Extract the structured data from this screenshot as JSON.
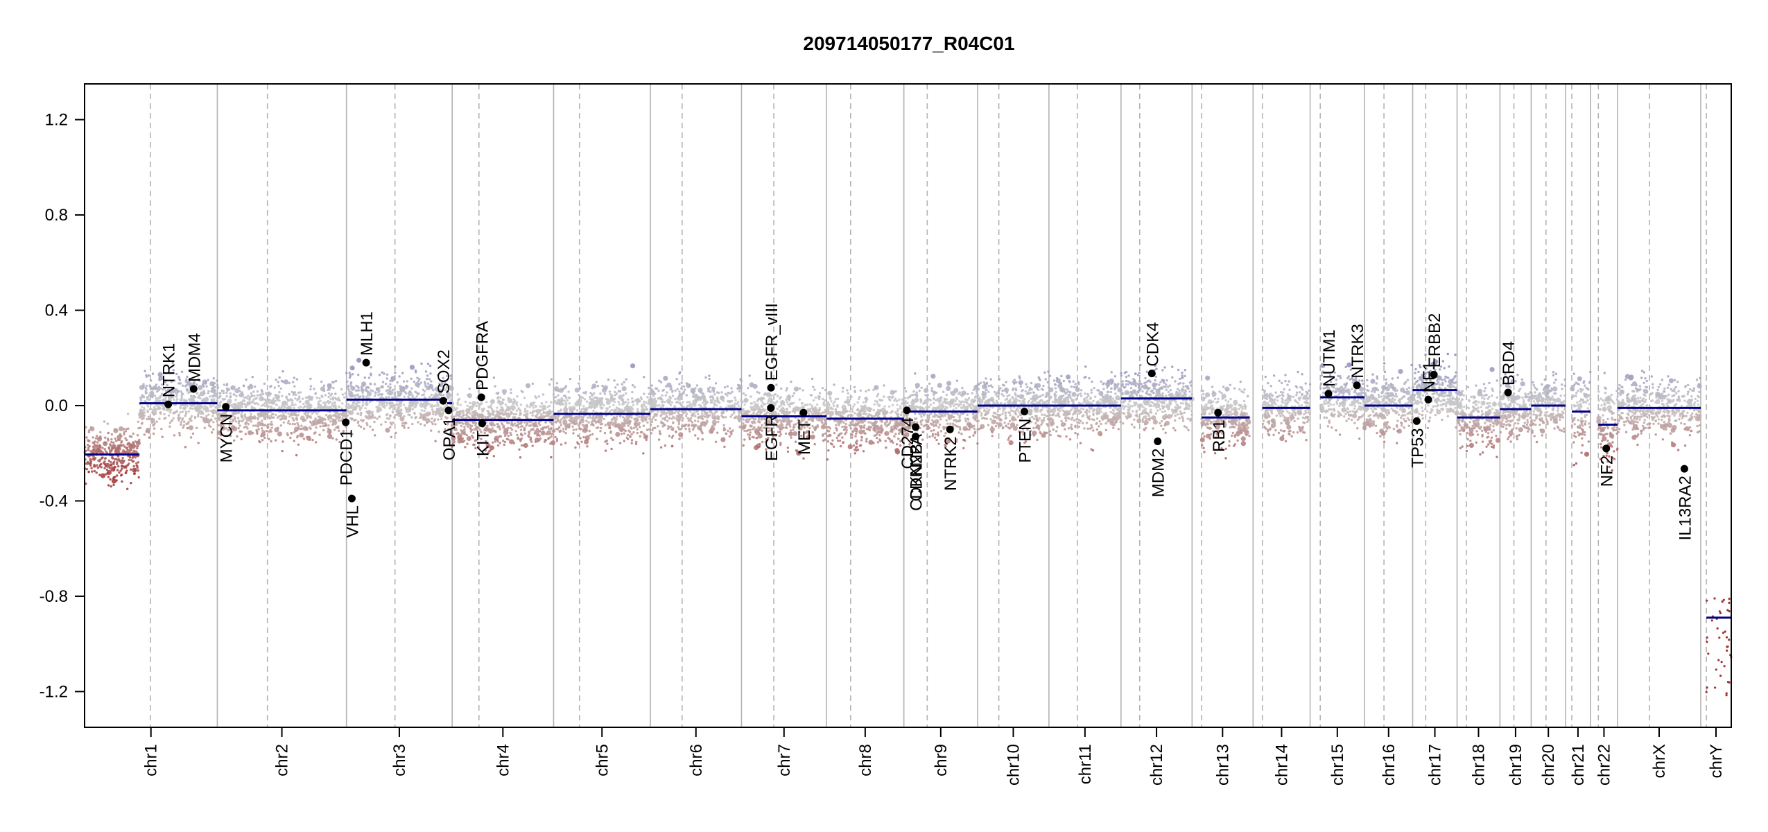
{
  "chart_data": {
    "type": "scatter",
    "title": "209714050177_R04C01",
    "xlabel": "",
    "ylabel": "",
    "ylim": [
      -1.35,
      1.35
    ],
    "yticks": [
      -1.2,
      -0.8,
      -0.4,
      0.0,
      0.4,
      0.8,
      1.2
    ],
    "ytick_labels": [
      "-1.2",
      "-0.8",
      "-0.4",
      "0.0",
      "0.4",
      "0.8",
      "1.2"
    ],
    "grid": false,
    "legend": "none",
    "colors": {
      "segment": "#000088",
      "gain": "#7f7fb8",
      "neutral": "#c8c8c8",
      "loss": "#a13333",
      "gene_point": "#000000",
      "separator": "#b3b3b3"
    },
    "chromosomes": [
      {
        "name": "chr1",
        "boundaries": [
          0,
          248.9
        ],
        "centromere": 123.4
      },
      {
        "name": "chr2",
        "boundaries": [
          248.9,
          491.1
        ],
        "centromere": 342.9
      },
      {
        "name": "chr3",
        "boundaries": [
          491.1,
          689.4
        ],
        "centromere": 582.1
      },
      {
        "name": "chr4",
        "boundaries": [
          689.4,
          879.6
        ],
        "centromere": 739.6
      },
      {
        "name": "chr5",
        "boundaries": [
          879.6,
          1061.1
        ],
        "centromere": 928.1
      },
      {
        "name": "chr6",
        "boundaries": [
          1061.1,
          1232.0
        ],
        "centromere": 1120.6
      },
      {
        "name": "chr7",
        "boundaries": [
          1232.0,
          1391.4
        ],
        "centromere": 1292.6
      },
      {
        "name": "chr8",
        "boundaries": [
          1391.4,
          1536.5
        ],
        "centromere": 1436.6
      },
      {
        "name": "chr9",
        "boundaries": [
          1536.5,
          1674.8
        ],
        "centromere": 1580.3
      },
      {
        "name": "chr10",
        "boundaries": [
          1674.8,
          1808.6
        ],
        "centromere": 1714.6
      },
      {
        "name": "chr11",
        "boundaries": [
          1808.6,
          1943.7
        ],
        "centromere": 1861.9
      },
      {
        "name": "chr12",
        "boundaries": [
          1943.7,
          2077.0
        ],
        "centromere": 1978.8
      },
      {
        "name": "chr13",
        "boundaries": [
          2077.0,
          2191.4
        ],
        "centromere": 2094.9
      },
      {
        "name": "chr14",
        "boundaries": [
          2191.4,
          2298.4
        ],
        "centromere": 2208.9
      },
      {
        "name": "chr15",
        "boundaries": [
          2298.4,
          2400.4
        ],
        "centromere": 2317.4
      },
      {
        "name": "chr16",
        "boundaries": [
          2400.4,
          2490.7
        ],
        "centromere": 2436.9
      },
      {
        "name": "chr17",
        "boundaries": [
          2490.7,
          2574.0
        ],
        "centromere": 2515.2
      },
      {
        "name": "chr18",
        "boundaries": [
          2574.0,
          2654.4
        ],
        "centromere": 2591.4
      },
      {
        "name": "chr19",
        "boundaries": [
          2654.4,
          2713.0
        ],
        "centromere": 2680.6
      },
      {
        "name": "chr20",
        "boundaries": [
          2713.0,
          2777.4
        ],
        "centromere": 2740.8
      },
      {
        "name": "chr21",
        "boundaries": [
          2777.4,
          2824.1
        ],
        "centromere": 2789.2
      },
      {
        "name": "chr22",
        "boundaries": [
          2824.1,
          2874.9
        ],
        "centromere": 2838.9
      },
      {
        "name": "chrX",
        "boundaries": [
          2874.9,
          3031.0
        ],
        "centromere": 2935.0
      },
      {
        "name": "chrY",
        "boundaries": [
          3031.0,
          3088.2
        ],
        "centromere": 3041.5
      }
    ],
    "segments": [
      {
        "chr": "chr1",
        "x": [
          0,
          103
        ],
        "y": -0.205
      },
      {
        "chr": "chr1",
        "x": [
          103,
          248.9
        ],
        "y": 0.01
      },
      {
        "chr": "chr2",
        "x": [
          248.9,
          491.1
        ],
        "y": -0.02
      },
      {
        "chr": "chr3",
        "x": [
          491.1,
          680
        ],
        "y": 0.025
      },
      {
        "chr": "chr3",
        "x": [
          680,
          689.4
        ],
        "y": 0.01
      },
      {
        "chr": "chr4",
        "x": [
          689.4,
          879.6
        ],
        "y": -0.06
      },
      {
        "chr": "chr5",
        "x": [
          879.6,
          1061.1
        ],
        "y": -0.035
      },
      {
        "chr": "chr6",
        "x": [
          1061.1,
          1232.0
        ],
        "y": -0.015
      },
      {
        "chr": "chr7",
        "x": [
          1232.0,
          1391.4
        ],
        "y": -0.045
      },
      {
        "chr": "chr8",
        "x": [
          1391.4,
          1536.5
        ],
        "y": -0.055
      },
      {
        "chr": "chr9",
        "x": [
          1536.5,
          1674.8
        ],
        "y": -0.025
      },
      {
        "chr": "chr10",
        "x": [
          1674.8,
          1808.6
        ],
        "y": 0.0
      },
      {
        "chr": "chr11",
        "x": [
          1808.6,
          1943.7
        ],
        "y": 0.0
      },
      {
        "chr": "chr12",
        "x": [
          1943.7,
          2077.0
        ],
        "y": 0.03
      },
      {
        "chr": "chr13",
        "x": [
          2094.9,
          2185.0
        ],
        "y": -0.05
      },
      {
        "chr": "chr14",
        "x": [
          2208.9,
          2298.4
        ],
        "y": -0.01
      },
      {
        "chr": "chr15",
        "x": [
          2317.4,
          2400.4
        ],
        "y": 0.035
      },
      {
        "chr": "chr16",
        "x": [
          2400.4,
          2490.7
        ],
        "y": 0.0
      },
      {
        "chr": "chr17",
        "x": [
          2490.7,
          2574.0
        ],
        "y": 0.065
      },
      {
        "chr": "chr18",
        "x": [
          2574.0,
          2654.4
        ],
        "y": -0.05
      },
      {
        "chr": "chr19",
        "x": [
          2654.4,
          2713.0
        ],
        "y": -0.015
      },
      {
        "chr": "chr20",
        "x": [
          2713.0,
          2777.4
        ],
        "y": 0.0
      },
      {
        "chr": "chr21",
        "x": [
          2789.2,
          2824.1
        ],
        "y": -0.025
      },
      {
        "chr": "chr22",
        "x": [
          2838.9,
          2874.9
        ],
        "y": -0.08
      },
      {
        "chr": "chrX",
        "x": [
          2874.9,
          3031.0
        ],
        "y": -0.01
      },
      {
        "chr": "chrY",
        "x": [
          3041.5,
          3088.2
        ],
        "y": -0.89
      }
    ],
    "genes": [
      {
        "name": "NTRK1",
        "x": 156.8,
        "y": 0.005,
        "side": "up"
      },
      {
        "name": "MDM4",
        "x": 204.5,
        "y": 0.07,
        "side": "up"
      },
      {
        "name": "MYCN",
        "x": 264.8,
        "y": -0.005,
        "side": "down"
      },
      {
        "name": "VHL",
        "x": 501.2,
        "y": -0.39,
        "side": "down"
      },
      {
        "name": "PDCD1",
        "x": 489.8,
        "y": -0.07,
        "side": "down"
      },
      {
        "name": "MLH1",
        "x": 528.1,
        "y": 0.18,
        "side": "up"
      },
      {
        "name": "SOX2",
        "x": 672.5,
        "y": 0.02,
        "side": "up"
      },
      {
        "name": "OPA1",
        "x": 682.6,
        "y": -0.02,
        "side": "down"
      },
      {
        "name": "KIT",
        "x": 745.7,
        "y": -0.075,
        "side": "down"
      },
      {
        "name": "PDGFRA",
        "x": 744.1,
        "y": 0.035,
        "side": "up"
      },
      {
        "name": "EGFR",
        "x": 1287.1,
        "y": -0.01,
        "side": "down"
      },
      {
        "name": "EGFR_vIII",
        "x": 1287.3,
        "y": 0.075,
        "side": "up"
      },
      {
        "name": "MET",
        "x": 1348.3,
        "y": -0.03,
        "side": "down"
      },
      {
        "name": "CD274",
        "x": 1542.0,
        "y": -0.02,
        "side": "down"
      },
      {
        "name": "CDKN2A",
        "x": 1558.5,
        "y": -0.09,
        "side": "down"
      },
      {
        "name": "CDKN2B",
        "x": 1558.5,
        "y": -0.13,
        "side": "down"
      },
      {
        "name": "NTRK2",
        "x": 1623.0,
        "y": -0.1,
        "side": "down"
      },
      {
        "name": "PTEN",
        "x": 1762.6,
        "y": -0.025,
        "side": "down"
      },
      {
        "name": "CDK4",
        "x": 2001.5,
        "y": 0.135,
        "side": "up"
      },
      {
        "name": "MDM2",
        "x": 2012.5,
        "y": -0.15,
        "side": "down"
      },
      {
        "name": "RB1",
        "x": 2125.7,
        "y": -0.03,
        "side": "down"
      },
      {
        "name": "NUTM1",
        "x": 2332.8,
        "y": 0.05,
        "side": "up"
      },
      {
        "name": "NTRK3",
        "x": 2386.1,
        "y": 0.085,
        "side": "up"
      },
      {
        "name": "TP53",
        "x": 2498.3,
        "y": -0.065,
        "side": "down"
      },
      {
        "name": "NF1",
        "x": 2520.0,
        "y": 0.025,
        "side": "up"
      },
      {
        "name": "ERBB2",
        "x": 2530.5,
        "y": 0.13,
        "side": "up"
      },
      {
        "name": "BRD4",
        "x": 2669.7,
        "y": 0.055,
        "side": "up"
      },
      {
        "name": "NF2",
        "x": 2853.8,
        "y": -0.18,
        "side": "down"
      },
      {
        "name": "IL13RA2",
        "x": 3000.3,
        "y": -0.265,
        "side": "down"
      }
    ]
  }
}
